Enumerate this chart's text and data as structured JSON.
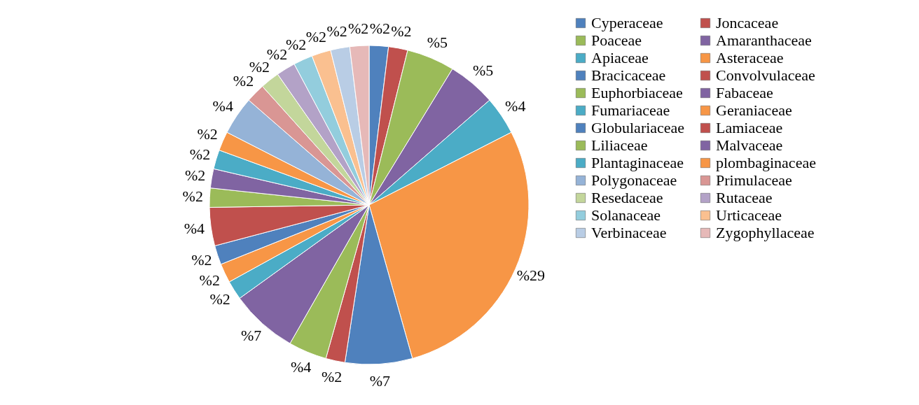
{
  "chart_data": {
    "type": "pie",
    "legend": "right",
    "categories": [
      "Cyperaceae",
      "Joncaceae",
      "Poaceae",
      "Amaranthaceae",
      "Apiaceae",
      "Asteraceae",
      "Bracicaceae",
      "Convolvulaceae",
      "Euphorbiaceae",
      "Fabaceae",
      "Fumariaceae",
      "Geraniaceae",
      "Globulariaceae",
      "Lamiaceae",
      "Liliaceae",
      "Malvaceae",
      "Plantaginaceae",
      "plombaginaceae",
      "Polygonaceae",
      "Primulaceae",
      "Resedaceae",
      "Rutaceae",
      "Solanaceae",
      "Urticaceae",
      "Verbinaceae",
      "Zygophyllaceae"
    ],
    "values": [
      2,
      2,
      5,
      5,
      4,
      29,
      7,
      2,
      4,
      7,
      2,
      2,
      2,
      4,
      2,
      2,
      2,
      2,
      4,
      2,
      2,
      2,
      2,
      2,
      2,
      2
    ],
    "value_labels": [
      "%2",
      "%2",
      "%5",
      "%5",
      "%4",
      "%29",
      "%7",
      "%2",
      "%4",
      "%7",
      "%2",
      "%2",
      "%2",
      "%4",
      "%2",
      "%2",
      "%2",
      "%2",
      "%4",
      "%2",
      "%2",
      "%2",
      "%2",
      "%2",
      "%2",
      "%2"
    ],
    "colors": [
      "#4f81bd",
      "#c0504d",
      "#9bbb59",
      "#8064a2",
      "#4bacc6",
      "#f79646",
      "#4f81bd",
      "#c0504d",
      "#9bbb59",
      "#8064a2",
      "#4bacc6",
      "#f79646",
      "#4f81bd",
      "#c0504d",
      "#9bbb59",
      "#8064a2",
      "#4bacc6",
      "#f79646",
      "#95b3d7",
      "#d99694",
      "#c3d69b",
      "#b3a2c7",
      "#93cddd",
      "#fac090",
      "#b9cde5",
      "#e6b9b8"
    ]
  }
}
